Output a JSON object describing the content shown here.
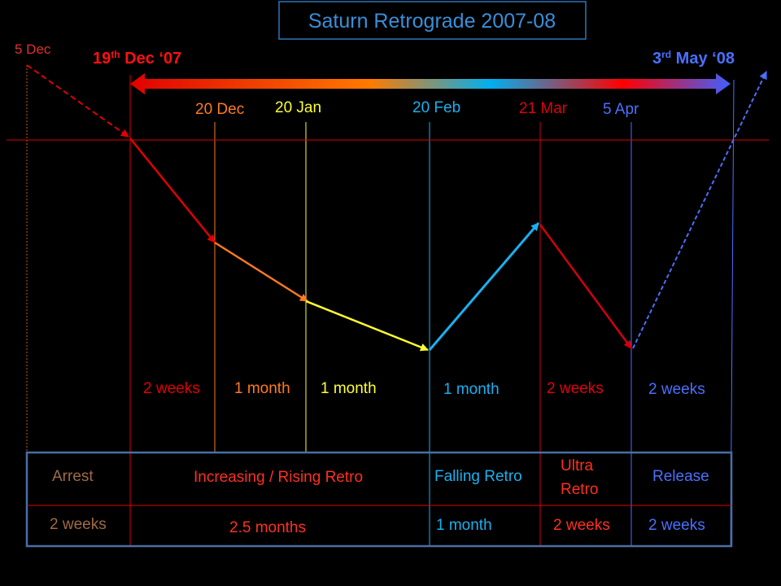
{
  "title": "Saturn Retrograde 2007-08",
  "early_date": "5 Dec",
  "start_date": {
    "day": "19",
    "suffix": "th",
    "rest": " Dec ‘07"
  },
  "end_date": {
    "day": "3",
    "suffix": "rd",
    "rest": " May ‘08"
  },
  "markers": [
    "20 Dec",
    "20 Jan",
    "20 Feb",
    "21 Mar",
    "5 Apr"
  ],
  "durations": [
    "2 weeks",
    "1 month",
    "1 month",
    "1 month",
    "2 weeks",
    "2 weeks"
  ],
  "table": {
    "rows": [
      [
        "Arrest",
        "Increasing / Rising Retro",
        "Falling Retro",
        [
          "Ultra",
          "Retro"
        ],
        "Release"
      ],
      [
        "2 weeks",
        "2.5 months",
        "1 month",
        "2 weeks",
        "2 weeks"
      ]
    ]
  }
}
